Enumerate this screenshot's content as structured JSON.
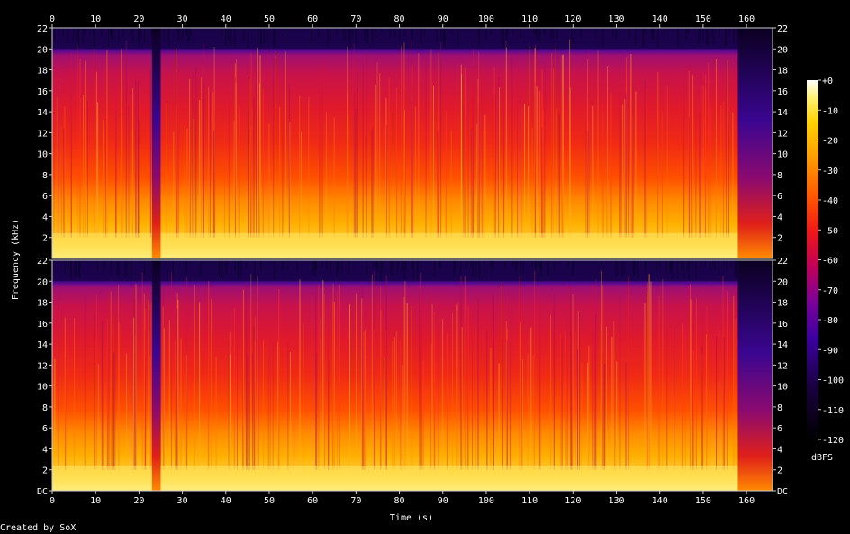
{
  "chart_data": {
    "type": "heatmap",
    "title": "",
    "xlabel": "Time (s)",
    "ylabel": "Frequency (kHz)",
    "x_ticks": [
      "0",
      "10",
      "20",
      "30",
      "40",
      "50",
      "60",
      "70",
      "80",
      "90",
      "100",
      "110",
      "120",
      "130",
      "140",
      "150",
      "160"
    ],
    "xlim": [
      0,
      166
    ],
    "channels": [
      {
        "y_ticks": [
          "22",
          "20",
          "18",
          "16",
          "14",
          "12",
          "10",
          "8",
          "6",
          "4",
          "2"
        ]
      },
      {
        "y_ticks": [
          "22",
          "20",
          "18",
          "16",
          "14",
          "12",
          "10",
          "8",
          "6",
          "4",
          "2",
          "DC"
        ]
      }
    ],
    "ylim": [
      0,
      22
    ],
    "colorbar": {
      "label": "dBFS",
      "ticks": [
        "+0",
        "-10",
        "-20",
        "-30",
        "-40",
        "-50",
        "-60",
        "-70",
        "-80",
        "-90",
        "-100",
        "-110",
        "-120"
      ],
      "range": [
        -120,
        0
      ]
    },
    "spectral_profile_dbfs": [
      {
        "freq_khz": 0,
        "level": -15
      },
      {
        "freq_khz": 2,
        "level": -22
      },
      {
        "freq_khz": 4,
        "level": -30
      },
      {
        "freq_khz": 6,
        "level": -38
      },
      {
        "freq_khz": 10,
        "level": -45
      },
      {
        "freq_khz": 14,
        "level": -52
      },
      {
        "freq_khz": 18,
        "level": -60
      },
      {
        "freq_khz": 20,
        "level": -70
      },
      {
        "freq_khz": 22,
        "level": -100
      }
    ],
    "quiet_segments_s": [
      [
        23,
        25
      ],
      [
        158,
        166
      ]
    ]
  },
  "footer": {
    "credit": "Created by SoX"
  }
}
